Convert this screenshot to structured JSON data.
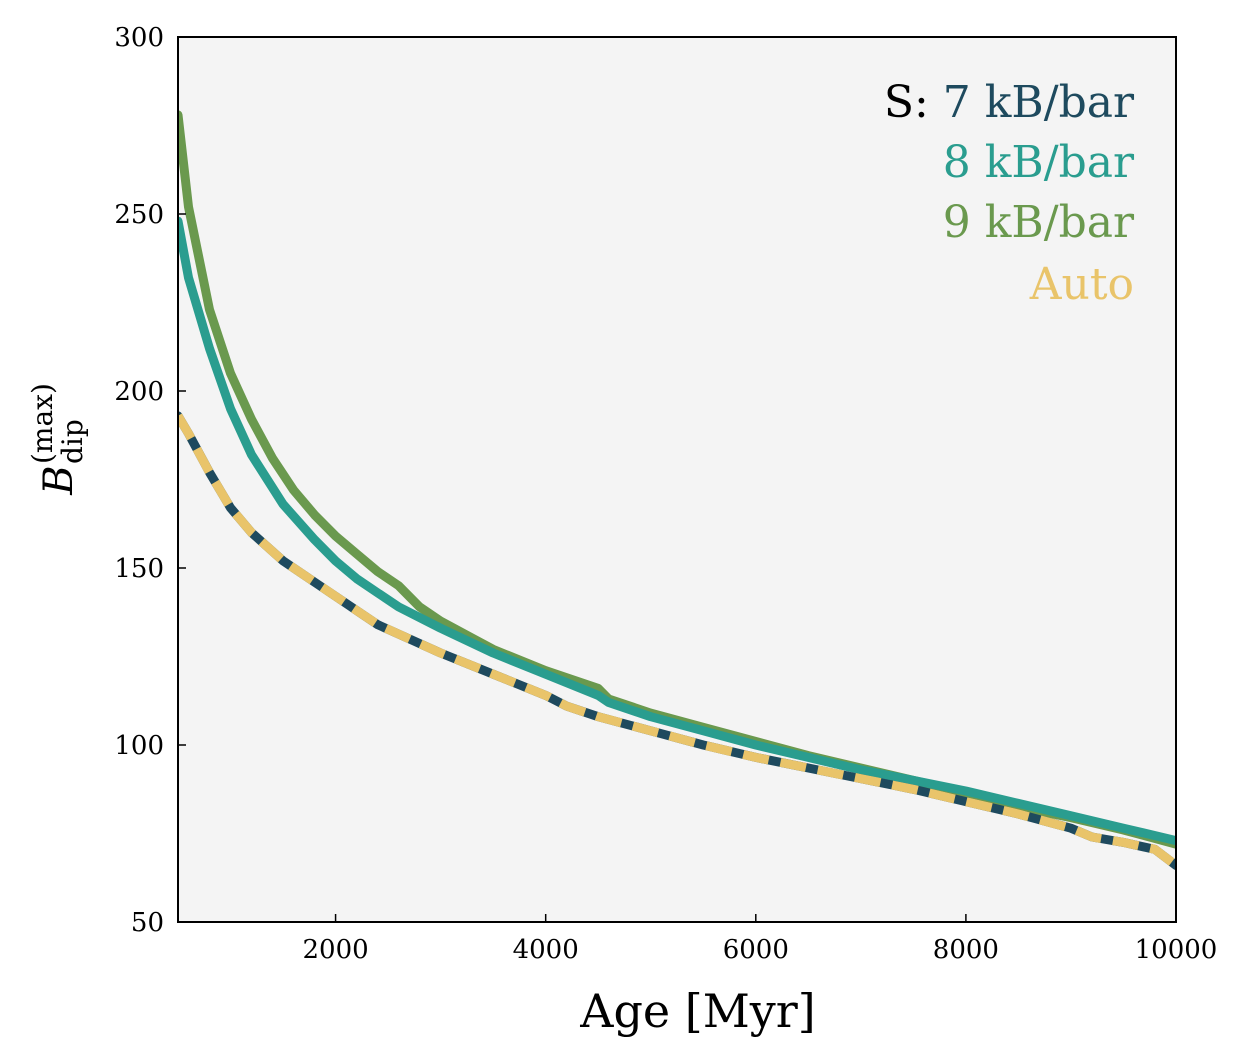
{
  "chart_data": {
    "type": "line",
    "title": "",
    "xlabel": "Age [Myr]",
    "ylabel": {
      "base": "B",
      "subscript": "dip",
      "superscript": "(max)"
    },
    "xlim": [
      500,
      10000
    ],
    "ylim": [
      50,
      300
    ],
    "xticks": [
      2000,
      4000,
      6000,
      8000,
      10000
    ],
    "yticks": [
      50,
      100,
      150,
      200,
      250,
      300
    ],
    "grid": false,
    "background": "#f4f4f4",
    "legend": {
      "placement": "top-right",
      "prefix": "S: ",
      "entries": [
        "7 kB/bar",
        "8 kB/bar",
        "9 kB/bar",
        "Auto"
      ]
    },
    "series": [
      {
        "name": "7 kB/bar",
        "color": "#1e4a5e",
        "style": "solid",
        "x": [
          500,
          600,
          800,
          1000,
          1200,
          1500,
          1800,
          2000,
          2200,
          2400,
          2700,
          3000,
          3500,
          4000,
          4200,
          4500,
          5000,
          5500,
          6000,
          6500,
          7000,
          7500,
          8000,
          8500,
          9000,
          9200,
          9500,
          9800,
          10000
        ],
        "y": [
          193,
          188,
          177,
          167,
          160,
          152,
          146,
          142,
          138,
          134,
          130,
          126,
          120,
          114,
          111,
          108,
          104,
          100,
          96.5,
          93.5,
          90.5,
          87.5,
          84,
          80.5,
          76.5,
          74,
          72.5,
          70.5,
          66
        ]
      },
      {
        "name": "8 kB/bar",
        "color": "#2a9d8f",
        "style": "solid",
        "x": [
          500,
          600,
          800,
          1000,
          1200,
          1500,
          1800,
          2000,
          2200,
          2400,
          2600,
          3000,
          3500,
          4000,
          4500,
          4600,
          5000,
          5500,
          6000,
          6500,
          7000,
          7500,
          8000,
          8500,
          9000,
          9500,
          10000
        ],
        "y": [
          248,
          232,
          212,
          195,
          182,
          168,
          158,
          152,
          147,
          143,
          139,
          133,
          126,
          120,
          114,
          112,
          108,
          104,
          100,
          96.5,
          93,
          90,
          87,
          83.5,
          80,
          76.5,
          73
        ]
      },
      {
        "name": "9 kB/bar",
        "color": "#6a994e",
        "style": "solid",
        "x": [
          500,
          600,
          800,
          1000,
          1200,
          1400,
          1600,
          1800,
          2000,
          2200,
          2400,
          2600,
          2800,
          3000,
          3500,
          4000,
          4500,
          4600,
          5000,
          5500,
          6000,
          6500,
          7000,
          7500,
          8000,
          8500,
          9000,
          9500,
          10000
        ],
        "y": [
          278,
          252,
          223,
          205,
          192,
          181,
          172,
          165,
          159,
          154,
          149,
          145,
          139,
          135,
          127,
          121,
          116,
          113,
          109,
          105,
          101,
          97,
          93.5,
          90,
          86.5,
          82.5,
          79.5,
          76,
          72
        ]
      },
      {
        "name": "Auto",
        "color": "#e9c46a",
        "style": "dashed",
        "x": [
          500,
          600,
          800,
          1000,
          1200,
          1500,
          1800,
          2000,
          2200,
          2400,
          2700,
          3000,
          3500,
          4000,
          4200,
          4500,
          5000,
          5500,
          6000,
          6500,
          7000,
          7500,
          8000,
          8500,
          9000,
          9200,
          9500,
          9800,
          10000
        ],
        "y": [
          193,
          188,
          177,
          167,
          160,
          152,
          146,
          142,
          138,
          134,
          130,
          126,
          120,
          114,
          111,
          108,
          104,
          100,
          96.5,
          93.5,
          90.5,
          87.5,
          84,
          80.5,
          76.5,
          74,
          72.5,
          70.5,
          66
        ]
      }
    ]
  }
}
